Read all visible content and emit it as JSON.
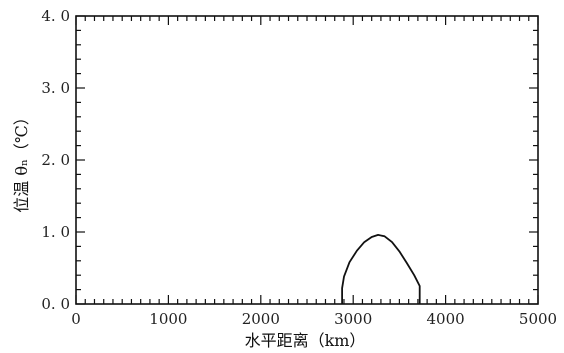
{
  "chart_data": {
    "type": "line",
    "xlabel": "水平距离（km）",
    "ylabel": "位温 θₙ（℃）",
    "xlim": [
      0,
      5000
    ],
    "ylim": [
      0,
      4.0
    ],
    "x_ticks": [
      0,
      1000,
      2000,
      3000,
      4000,
      5000
    ],
    "x_tick_labels": [
      "0",
      "1000",
      "2000",
      "3000",
      "4000",
      "5000"
    ],
    "y_ticks": [
      0,
      1.0,
      2.0,
      3.0,
      4.0
    ],
    "y_tick_labels": [
      "0. 0",
      "1. 0",
      "2. 0",
      "3. 0",
      "4. 0"
    ],
    "grid": false,
    "series": [
      {
        "x": [
          2880,
          2880,
          2900,
          2960,
          3040,
          3120,
          3200,
          3270,
          3340,
          3420,
          3500,
          3580,
          3660,
          3720,
          3720
        ],
        "y": [
          0.0,
          0.22,
          0.38,
          0.58,
          0.74,
          0.86,
          0.93,
          0.96,
          0.94,
          0.86,
          0.73,
          0.57,
          0.4,
          0.25,
          0.0
        ]
      }
    ]
  }
}
